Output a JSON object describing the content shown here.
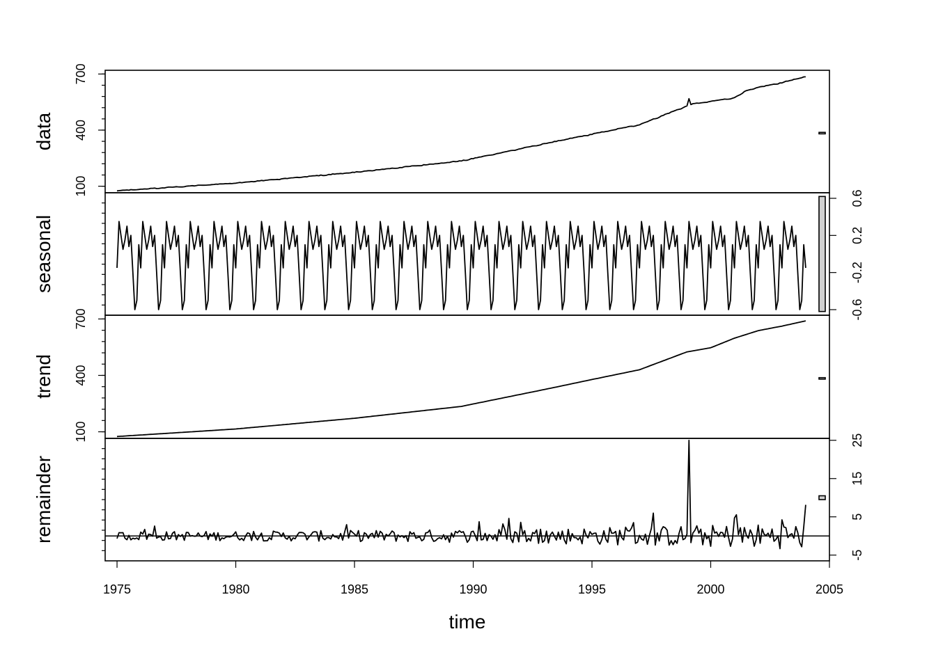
{
  "chart_data": {
    "type": "line",
    "title": "",
    "xlabel": "time",
    "xlim": [
      1974.5,
      2005
    ],
    "x_ticks": [
      1975,
      1980,
      1985,
      1990,
      1995,
      2000,
      2005
    ],
    "x_start": 1975.0,
    "x_end": 2004.0,
    "frequency": 12,
    "panels": [
      {
        "name": "data",
        "ylim": [
          65,
          720
        ],
        "left_ticks": [
          100,
          400,
          700
        ],
        "right_ticks": [],
        "range_bar": [
          380,
          388
        ],
        "series": {
          "name": "data",
          "knots_x": [
            1975,
            1980,
            1985,
            1989.5,
            1990,
            1993,
            1995,
            1997,
            1999.2,
            2000,
            2001,
            2001.5,
            2002,
            2003,
            2004
          ],
          "knots_y": [
            75,
            117,
            174,
            235,
            248,
            327,
            378,
            429,
            539,
            553,
            573,
            610,
            628,
            654,
            686
          ],
          "spike": {
            "x": 1999.1,
            "y": 568
          }
        }
      },
      {
        "name": "seasonal",
        "ylim": [
          -0.66,
          0.66
        ],
        "left_ticks": [],
        "right_ticks": [
          0.6,
          0.2,
          -0.2,
          -0.6
        ],
        "range_bar": [
          -0.62,
          0.62
        ],
        "series": {
          "name": "seasonal",
          "monthly_pattern": [
            -0.15,
            0.35,
            0.2,
            0.05,
            0.15,
            0.3,
            0.08,
            0.2,
            -0.2,
            -0.6,
            -0.5,
            0.1
          ]
        }
      },
      {
        "name": "trend",
        "ylim": [
          65,
          720
        ],
        "left_ticks": [
          100,
          400,
          700
        ],
        "right_ticks": [],
        "range_bar": [
          380,
          388
        ],
        "series": {
          "name": "trend",
          "knots_x": [
            1975,
            1980,
            1985,
            1989.5,
            1990,
            1993,
            1995,
            1997,
            1999,
            2000,
            2001,
            2001.5,
            2002,
            2003,
            2004
          ],
          "knots_y": [
            75,
            115,
            172,
            235,
            248,
            325,
            378,
            430,
            525,
            547,
            598,
            618,
            638,
            662,
            690
          ]
        }
      },
      {
        "name": "remainder",
        "ylim": [
          -6.5,
          25.5
        ],
        "left_ticks": [],
        "right_ticks": [
          25,
          15,
          5,
          -5
        ],
        "range_bar": [
          9.5,
          10.5
        ],
        "zero_line": 0,
        "series": {
          "name": "remainder",
          "amplitude_start": 1.2,
          "amplitude_end": 3.5,
          "spike": {
            "x": 1999.1,
            "y": 25
          }
        }
      }
    ]
  }
}
